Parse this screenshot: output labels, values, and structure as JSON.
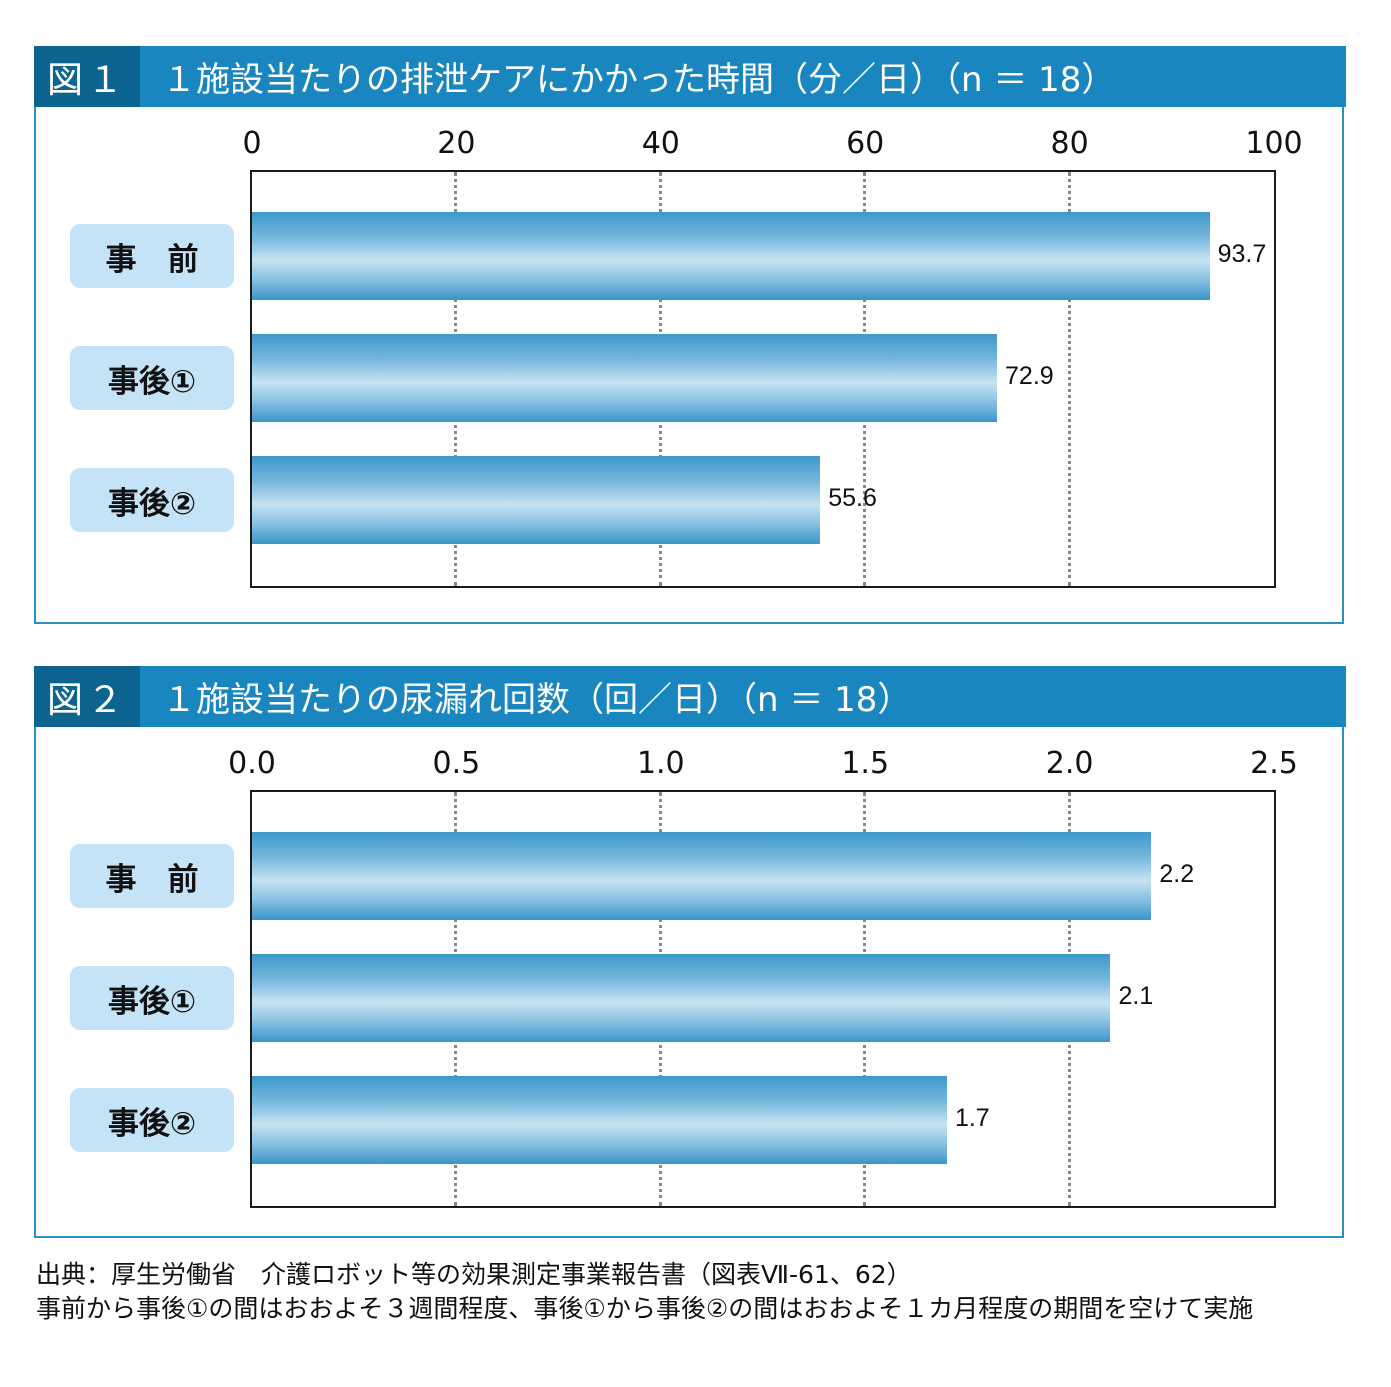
{
  "chart_data": [
    {
      "type": "bar",
      "orientation": "horizontal",
      "figure_number": "図１",
      "title": "１施設当たりの排泄ケアにかかった時間（分／日）（n ＝ 18）",
      "categories": [
        "事　前",
        "事後①",
        "事後②"
      ],
      "values": [
        93.7,
        72.9,
        55.6
      ],
      "value_labels": [
        "93.7",
        "72.9",
        "55.6"
      ],
      "xlim": [
        0,
        100
      ],
      "xticks": [
        "0",
        "20",
        "40",
        "60",
        "80",
        "100"
      ],
      "tick_values": [
        0,
        20,
        40,
        60,
        80,
        100
      ],
      "grid": "vertical dotted"
    },
    {
      "type": "bar",
      "orientation": "horizontal",
      "figure_number": "図２",
      "title": "１施設当たりの尿漏れ回数（回／日）（n ＝ 18）",
      "categories": [
        "事　前",
        "事後①",
        "事後②"
      ],
      "values": [
        2.2,
        2.1,
        1.7
      ],
      "value_labels": [
        "2.2",
        "2.1",
        "1.7"
      ],
      "xlim": [
        0,
        2.5
      ],
      "xticks": [
        "0.0",
        "0.5",
        "1.0",
        "1.5",
        "2.0",
        "2.5"
      ],
      "tick_values": [
        0,
        0.5,
        1.0,
        1.5,
        2.0,
        2.5
      ],
      "grid": "vertical dotted"
    }
  ],
  "source_note": {
    "line1": "出典：厚生労働省　介護ロボット等の効果測定事業報告書（図表Ⅶ-61、62）",
    "line2": "事前から事後①の間はおおよそ３週間程度、事後①から事後②の間はおおよそ１カ月程度の期間を空けて実施"
  },
  "colors": {
    "header_bg": "#1a86c0",
    "fig_no_bg": "#0e6491",
    "panel_border": "#2a8fc6",
    "label_bg": "#c5e3f6",
    "bar_mid": "#c7e3f3",
    "bar_edge": "#3b95c8"
  }
}
